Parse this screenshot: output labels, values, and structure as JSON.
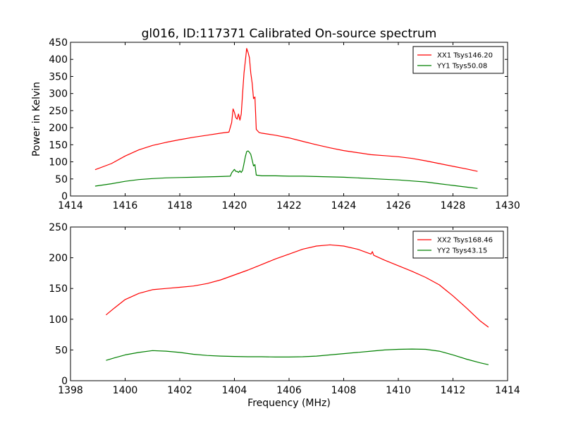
{
  "title": "gl016, ID:117371 Calibrated On-source spectrum",
  "chart_data": [
    {
      "type": "line",
      "title": "gl016, ID:117371 Calibrated On-source spectrum",
      "xlabel": "",
      "ylabel": "Power in Kelvin",
      "xlim": [
        1414,
        1430
      ],
      "ylim": [
        0,
        450
      ],
      "xticks": [
        1414,
        1416,
        1418,
        1420,
        1422,
        1424,
        1426,
        1428,
        1430
      ],
      "yticks": [
        0,
        50,
        100,
        150,
        200,
        250,
        300,
        350,
        400,
        450
      ],
      "grid": false,
      "legend": "top-right",
      "series": [
        {
          "name": "XX1 Tsys146.20",
          "color": "#ff0000",
          "x": [
            1414.9,
            1415.5,
            1416.0,
            1416.5,
            1417.0,
            1417.5,
            1418.0,
            1418.5,
            1419.0,
            1419.5,
            1419.8,
            1419.9,
            1419.95,
            1420.0,
            1420.05,
            1420.1,
            1420.15,
            1420.2,
            1420.25,
            1420.3,
            1420.35,
            1420.4,
            1420.45,
            1420.5,
            1420.55,
            1420.6,
            1420.65,
            1420.7,
            1420.75,
            1420.8,
            1420.9,
            1421.0,
            1421.5,
            1422.0,
            1422.5,
            1423.0,
            1423.5,
            1424.0,
            1424.5,
            1425.0,
            1425.5,
            1426.0,
            1426.5,
            1427.0,
            1427.5,
            1428.0,
            1428.5,
            1428.9
          ],
          "y": [
            77,
            95,
            117,
            135,
            148,
            157,
            165,
            172,
            178,
            184,
            187,
            215,
            255,
            245,
            230,
            225,
            240,
            222,
            240,
            300,
            360,
            395,
            432,
            420,
            405,
            360,
            330,
            285,
            290,
            195,
            186,
            184,
            178,
            170,
            160,
            150,
            141,
            133,
            127,
            121,
            118,
            115,
            110,
            103,
            95,
            87,
            79,
            72
          ]
        },
        {
          "name": "YY1 Tsys50.08",
          "color": "#008000",
          "x": [
            1414.9,
            1415.5,
            1416.0,
            1416.5,
            1417.0,
            1417.5,
            1418.0,
            1418.5,
            1419.0,
            1419.5,
            1419.85,
            1419.9,
            1420.0,
            1420.05,
            1420.1,
            1420.15,
            1420.2,
            1420.25,
            1420.3,
            1420.35,
            1420.4,
            1420.45,
            1420.5,
            1420.55,
            1420.6,
            1420.65,
            1420.7,
            1420.75,
            1420.8,
            1421.0,
            1421.5,
            1422.0,
            1422.5,
            1423.0,
            1423.5,
            1424.0,
            1424.5,
            1425.0,
            1425.5,
            1426.0,
            1426.5,
            1427.0,
            1427.5,
            1428.0,
            1428.5,
            1428.9
          ],
          "y": [
            29,
            36,
            43,
            48,
            51,
            53,
            54,
            55,
            56,
            57,
            58,
            68,
            78,
            72,
            72,
            69,
            74,
            69,
            75,
            95,
            115,
            130,
            132,
            128,
            122,
            105,
            88,
            92,
            61,
            59,
            59,
            58,
            58,
            57,
            56,
            55,
            53,
            51,
            49,
            47,
            44,
            41,
            36,
            31,
            26,
            22
          ]
        }
      ]
    },
    {
      "type": "line",
      "title": "",
      "xlabel": "Frequency (MHz)",
      "ylabel": "",
      "xlim": [
        1398,
        1414
      ],
      "ylim": [
        0,
        250
      ],
      "xticks": [
        1398,
        1400,
        1402,
        1404,
        1406,
        1408,
        1410,
        1412,
        1414
      ],
      "yticks": [
        0,
        50,
        100,
        150,
        200,
        250
      ],
      "grid": false,
      "legend": "top-right",
      "series": [
        {
          "name": "XX2 Tsys168.46",
          "color": "#ff0000",
          "x": [
            1399.3,
            1399.6,
            1400.0,
            1400.5,
            1401.0,
            1401.5,
            1402.0,
            1402.5,
            1403.0,
            1403.5,
            1404.0,
            1404.5,
            1405.0,
            1405.5,
            1406.0,
            1406.5,
            1407.0,
            1407.5,
            1408.0,
            1408.5,
            1409.0,
            1409.05,
            1409.1,
            1409.5,
            1410.0,
            1410.5,
            1411.0,
            1411.5,
            1412.0,
            1412.5,
            1413.0,
            1413.3
          ],
          "y": [
            107,
            118,
            132,
            142,
            148,
            150,
            152,
            154,
            158,
            164,
            172,
            180,
            189,
            198,
            206,
            214,
            219,
            221,
            219,
            214,
            206,
            210,
            204,
            196,
            187,
            178,
            168,
            156,
            138,
            118,
            97,
            87
          ]
        },
        {
          "name": "YY2 Tsys43.15",
          "color": "#008000",
          "x": [
            1399.3,
            1399.6,
            1400.0,
            1400.5,
            1401.0,
            1401.5,
            1402.0,
            1402.5,
            1403.0,
            1403.5,
            1404.0,
            1404.5,
            1405.0,
            1405.5,
            1406.0,
            1406.5,
            1407.0,
            1407.5,
            1408.0,
            1408.5,
            1409.0,
            1409.5,
            1410.0,
            1410.5,
            1411.0,
            1411.5,
            1412.0,
            1412.5,
            1413.0,
            1413.3
          ],
          "y": [
            33,
            37,
            42,
            46,
            49,
            48,
            46,
            43,
            41,
            40,
            39.5,
            39,
            39,
            38.5,
            38.5,
            39,
            40,
            42,
            44,
            46,
            48,
            50,
            51,
            51.5,
            51,
            48,
            42,
            35,
            29,
            26
          ]
        }
      ]
    }
  ]
}
